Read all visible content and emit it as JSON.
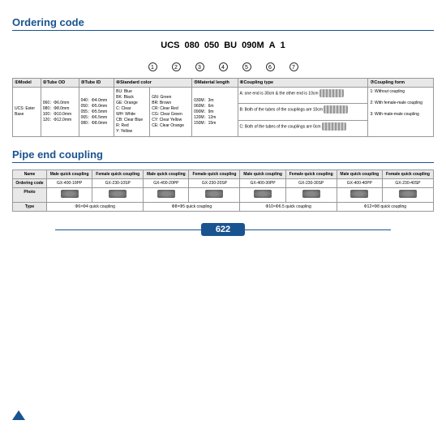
{
  "sections": {
    "ordering": "Ordering code",
    "pipe": "Pipe end coupling"
  },
  "code": [
    "UCS",
    "080",
    "050",
    "BU",
    "090M",
    "A",
    "1"
  ],
  "circles": [
    "1",
    "2",
    "3",
    "4",
    "5",
    "6",
    "7"
  ],
  "headers": [
    "①Model",
    "②Tube OD",
    "③Tube ID",
    "④Standard color",
    "⑤Material length",
    "⑥Coupling type",
    "⑦Coupling form"
  ],
  "model": "UCS: Ester\nBase",
  "tubeOD": "060：Φ6.0mm\n080：Φ8.0mm\n100：Φ10.0mm\n120：Φ12.0mm",
  "tubeID": "040：Φ4.0mm\n050：Φ5.0mm\n055：Φ5.5mm\n065：Φ6.5mm\n080：Φ8.0mm",
  "colors1": "BU: Blue\nBK: Black\nGE: Orange\nC: Clear\nWH: White\nCB: Clear Blue\nR: Red\nY: Yellow",
  "colors2": "GN: Green\nBR: Brown\nCR: Clear Red\nCG: Clear Green\nCY: Clear Yellow\nCE: Clear Orange",
  "length": "030M：3m\n060M：6m\n090M：9m\n120M：12m\n150M：15m",
  "couplingA": "A: one end is 30cm & the other end is 10cm",
  "couplingB": "B: Both of the tubes of the couplings are 10cm",
  "couplingC": "C: Both of the tubes of the couplings are 0cm",
  "form": "1: Without coupling\n\n2: With female-male coupling\n\n3: With male-male coupling",
  "pipe": {
    "rows": [
      "Name",
      "Ordering code",
      "Photo",
      "Type"
    ],
    "names": [
      "Male quick coupling",
      "Female quick coupling",
      "Male quick coupling",
      "Female quick coupling",
      "Male quick coupling",
      "Female quick coupling",
      "Male quick coupling",
      "Female quick coupling"
    ],
    "codes": [
      "GX-400-10PP",
      "GX-230-10SP",
      "GX-400-20PP",
      "GX-230-20SP",
      "GX-400-30PP",
      "GX-230-30SP",
      "GX-400-40PP",
      "GX-230-40SP"
    ],
    "types": [
      "Φ6×Φ4 quick coupling",
      "Φ8×Φ5 quick coupling",
      "Φ10×Φ6.5 quick coupling",
      "Φ12×Φ8 quick coupling"
    ]
  },
  "pageNum": "622"
}
